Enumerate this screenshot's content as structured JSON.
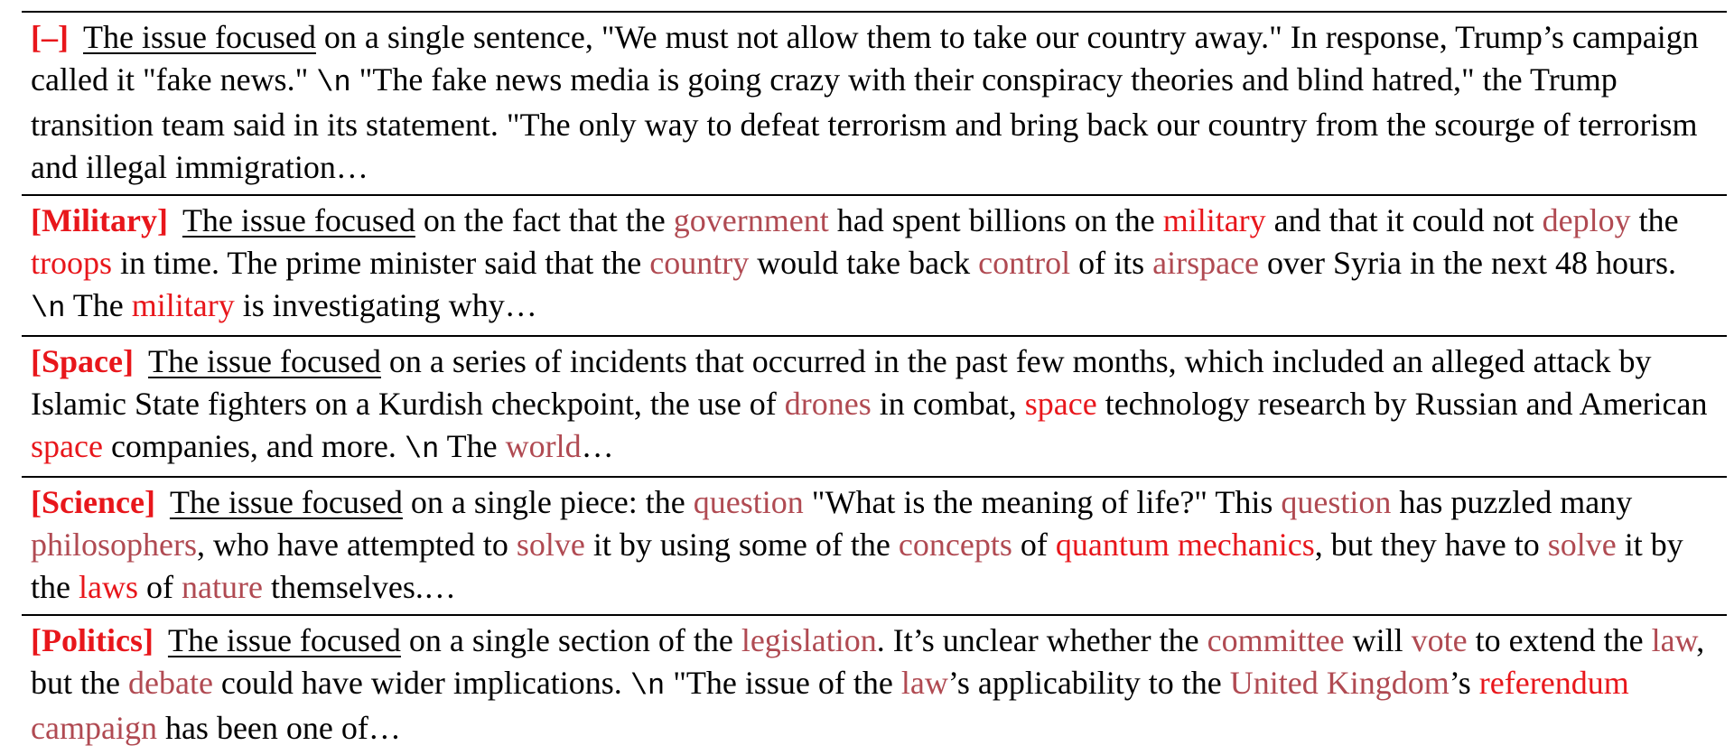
{
  "colors": {
    "strong": "#e8161b",
    "weak": "#b04a52",
    "tag": "#e8161b"
  },
  "rows": [
    {
      "tag": "[–]",
      "prefix": "The issue focused",
      "segments": [
        {
          "t": " on a single sentence, \"We must not allow them to take our country away.\" In response, Trump’s campaign called it \"fake news.\" "
        },
        {
          "t": "\\n",
          "s": "mono"
        },
        {
          "t": " \"The fake news media is going crazy with their conspiracy theories and blind hatred,\" the Trump transition team said in its statement. \"The only way to defeat terrorism and bring back our country from the scourge of terrorism and illegal immigration…"
        }
      ]
    },
    {
      "tag": "[Military]",
      "prefix": "The issue focused",
      "segments": [
        {
          "t": " on the fact that the "
        },
        {
          "t": "government",
          "s": "weak"
        },
        {
          "t": " had spent billions on the "
        },
        {
          "t": "military",
          "s": "strong"
        },
        {
          "t": " and that it could not "
        },
        {
          "t": "deploy",
          "s": "weak"
        },
        {
          "t": " the "
        },
        {
          "t": "troops",
          "s": "strong"
        },
        {
          "t": " in time. The prime minister said that the "
        },
        {
          "t": "country",
          "s": "weak"
        },
        {
          "t": " would take back "
        },
        {
          "t": "control",
          "s": "weak"
        },
        {
          "t": " of its "
        },
        {
          "t": "airspace",
          "s": "weak"
        },
        {
          "t": " over Syria in the next 48 hours. "
        },
        {
          "t": "\\n",
          "s": "mono"
        },
        {
          "t": " The "
        },
        {
          "t": "military",
          "s": "strong"
        },
        {
          "t": " is investigating why…"
        }
      ]
    },
    {
      "tag": "[Space]",
      "prefix": "The issue focused",
      "segments": [
        {
          "t": " on a series of incidents that occurred in the past few months, which included an alleged attack by Islamic State fighters on a Kurdish checkpoint, the use of "
        },
        {
          "t": "drones",
          "s": "weak"
        },
        {
          "t": " in combat, "
        },
        {
          "t": "space",
          "s": "strong"
        },
        {
          "t": " technology research by Russian and American "
        },
        {
          "t": "space",
          "s": "strong"
        },
        {
          "t": " companies, and more. "
        },
        {
          "t": "\\n",
          "s": "mono"
        },
        {
          "t": " The "
        },
        {
          "t": "world",
          "s": "weak"
        },
        {
          "t": "…"
        }
      ]
    },
    {
      "tag": "[Science]",
      "prefix": "The issue focused",
      "segments": [
        {
          "t": " on a single piece: the "
        },
        {
          "t": "question",
          "s": "weak"
        },
        {
          "t": " \"What is the meaning of life?\" This "
        },
        {
          "t": "question",
          "s": "weak"
        },
        {
          "t": " has puzzled many "
        },
        {
          "t": "philosophers",
          "s": "weak"
        },
        {
          "t": ", who have attempted to "
        },
        {
          "t": "solve",
          "s": "weak"
        },
        {
          "t": " it by using some of the "
        },
        {
          "t": "concepts",
          "s": "weak"
        },
        {
          "t": " of "
        },
        {
          "t": "quantum mechanics",
          "s": "strong"
        },
        {
          "t": ", but they have to "
        },
        {
          "t": "solve",
          "s": "weak"
        },
        {
          "t": " it by the "
        },
        {
          "t": "laws",
          "s": "strong"
        },
        {
          "t": " of "
        },
        {
          "t": "nature",
          "s": "weak"
        },
        {
          "t": " themselves.…"
        }
      ]
    },
    {
      "tag": "[Politics]",
      "prefix": "The issue focused",
      "segments": [
        {
          "t": " on a single section of the "
        },
        {
          "t": "legislation",
          "s": "weak"
        },
        {
          "t": ". It’s unclear whether the "
        },
        {
          "t": "committee",
          "s": "weak"
        },
        {
          "t": " will "
        },
        {
          "t": "vote",
          "s": "weak"
        },
        {
          "t": " to extend the "
        },
        {
          "t": "law",
          "s": "weak"
        },
        {
          "t": ", but the "
        },
        {
          "t": "debate",
          "s": "weak"
        },
        {
          "t": " could have wider implications. "
        },
        {
          "t": "\\n",
          "s": "mono"
        },
        {
          "t": " \"The issue of the "
        },
        {
          "t": "law",
          "s": "weak"
        },
        {
          "t": "’s applicability to the "
        },
        {
          "t": "United Kingdom",
          "s": "weak"
        },
        {
          "t": "’s "
        },
        {
          "t": "referendum",
          "s": "strong"
        },
        {
          "t": " "
        },
        {
          "t": "campaign",
          "s": "weak"
        },
        {
          "t": " has been one of…"
        }
      ]
    }
  ]
}
